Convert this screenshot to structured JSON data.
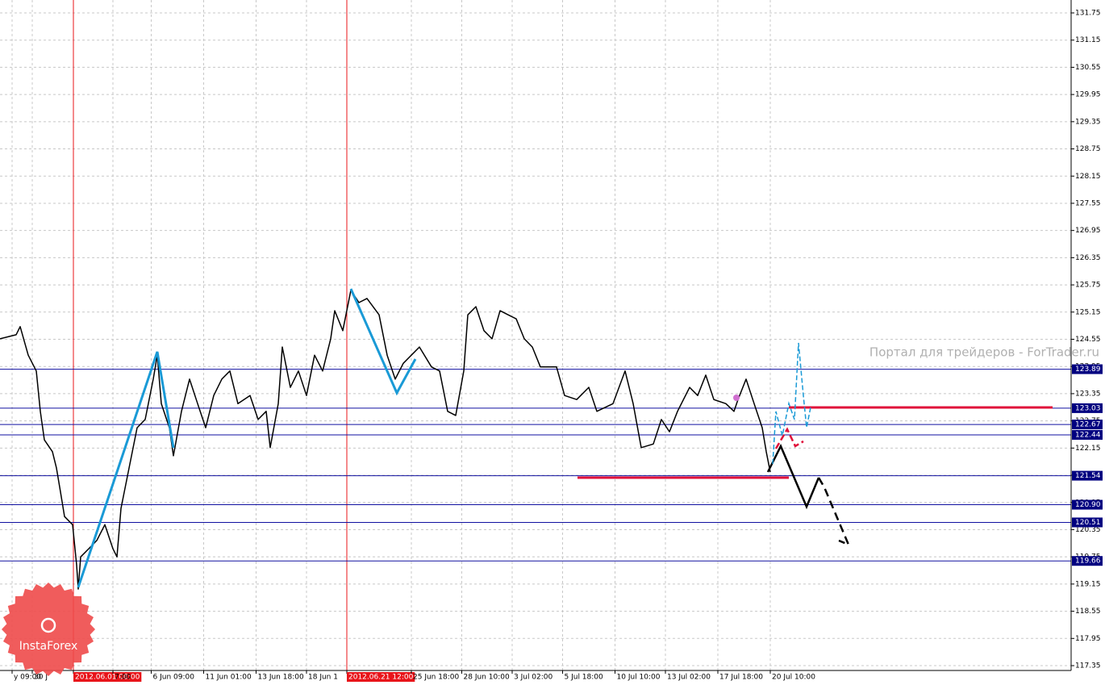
{
  "chart_data": {
    "type": "line",
    "x": [
      0,
      4,
      5,
      7,
      9,
      10,
      11,
      13,
      14,
      15,
      16,
      18,
      19,
      19.4,
      20,
      22,
      24,
      26,
      28,
      29,
      30,
      32,
      34,
      36,
      38,
      39,
      40,
      42,
      43,
      45,
      47,
      49,
      51,
      53,
      55,
      57,
      59,
      62,
      64,
      66,
      67,
      69,
      70,
      72,
      74,
      76,
      78,
      80,
      82,
      83,
      85,
      87,
      89,
      91,
      94,
      96,
      98,
      100,
      102,
      104,
      107,
      109,
      111,
      113,
      115,
      116,
      118,
      120,
      122,
      124,
      126,
      128,
      130,
      132,
      134,
      138,
      140,
      143,
      146,
      148,
      152,
      155,
      157,
      159,
      162,
      164,
      166,
      168,
      171,
      173,
      175,
      177,
      180,
      182,
      183,
      185,
      187,
      189,
      190,
      191
    ],
    "values": [
      124.56,
      124.65,
      124.83,
      124.2,
      123.85,
      122.96,
      122.33,
      122.07,
      121.71,
      121.18,
      120.64,
      120.46,
      119.57,
      119.04,
      119.75,
      119.93,
      120.11,
      120.46,
      119.93,
      119.75,
      120.82,
      121.71,
      122.6,
      122.78,
      123.67,
      124.2,
      123.13,
      122.6,
      121.98,
      122.96,
      123.67,
      123.13,
      122.6,
      123.31,
      123.67,
      123.85,
      123.13,
      123.31,
      122.78,
      122.96,
      122.16,
      123.13,
      124.38,
      123.49,
      123.85,
      123.31,
      124.2,
      123.85,
      124.56,
      125.18,
      124.74,
      125.63,
      125.36,
      125.45,
      125.09,
      124.2,
      123.67,
      124.02,
      124.2,
      124.38,
      123.94,
      123.85,
      122.96,
      122.87,
      123.85,
      125.09,
      125.27,
      124.74,
      124.56,
      125.18,
      125.09,
      125.0,
      124.56,
      124.38,
      123.94,
      123.94,
      123.31,
      123.22,
      123.49,
      122.96,
      123.13,
      123.85,
      123.13,
      122.16,
      122.24,
      122.78,
      122.51,
      122.96,
      123.49,
      123.31,
      123.76,
      123.22,
      123.13,
      122.96,
      123.22,
      123.67,
      123.13,
      122.6,
      122.07,
      121.62
    ],
    "color": "#000000",
    "xlim": [
      0,
      265.6
    ],
    "ylim": [
      117.35,
      131.75
    ],
    "yticks": [
      117.35,
      117.95,
      118.55,
      119.15,
      119.75,
      120.35,
      120.95,
      121.55,
      122.15,
      122.75,
      123.35,
      123.95,
      124.55,
      125.15,
      125.75,
      126.35,
      126.95,
      127.55,
      128.15,
      128.75,
      129.35,
      129.95,
      130.55,
      131.15,
      131.75
    ],
    "xticks": [
      {
        "value": 3,
        "label": "y 09:00"
      },
      {
        "value": 8,
        "label": "30 J"
      },
      {
        "value": 18.2,
        "label": "2012.06.01 08:00"
      },
      {
        "value": 28,
        "label": "7:00"
      },
      {
        "value": 37.5,
        "label": "6 Jun 09:00"
      },
      {
        "value": 50.5,
        "label": "11 Jun 01:00"
      },
      {
        "value": 63.5,
        "label": "13 Jun 18:00"
      },
      {
        "value": 76,
        "label": "18 Jun 1"
      },
      {
        "value": 86,
        "label": "2012.06.21 12:00"
      },
      {
        "value": 102,
        "label": "25 Jun 18:00"
      },
      {
        "value": 114.5,
        "label": "28 Jun 10:00"
      },
      {
        "value": 127,
        "label": "3 Jul 02:00"
      },
      {
        "value": 139.5,
        "label": "5 Jul 18:00"
      },
      {
        "value": 152.5,
        "label": "10 Jul 10:00"
      },
      {
        "value": 165,
        "label": "13 Jul 02:00"
      },
      {
        "value": 178,
        "label": "17 Jul 18:00"
      },
      {
        "value": 191,
        "label": "20 Jul 10:00"
      }
    ],
    "markers": [
      18.2,
      86
    ],
    "levels": [
      123.89,
      123.03,
      122.67,
      122.44,
      121.54,
      {
        "value": 120.9,
        "label": "120.90"
      },
      120.51,
      119.66
    ],
    "grid": true,
    "watermark": "Портал для трейдеров - ForTrader.ru",
    "logo": "InstaForex"
  }
}
